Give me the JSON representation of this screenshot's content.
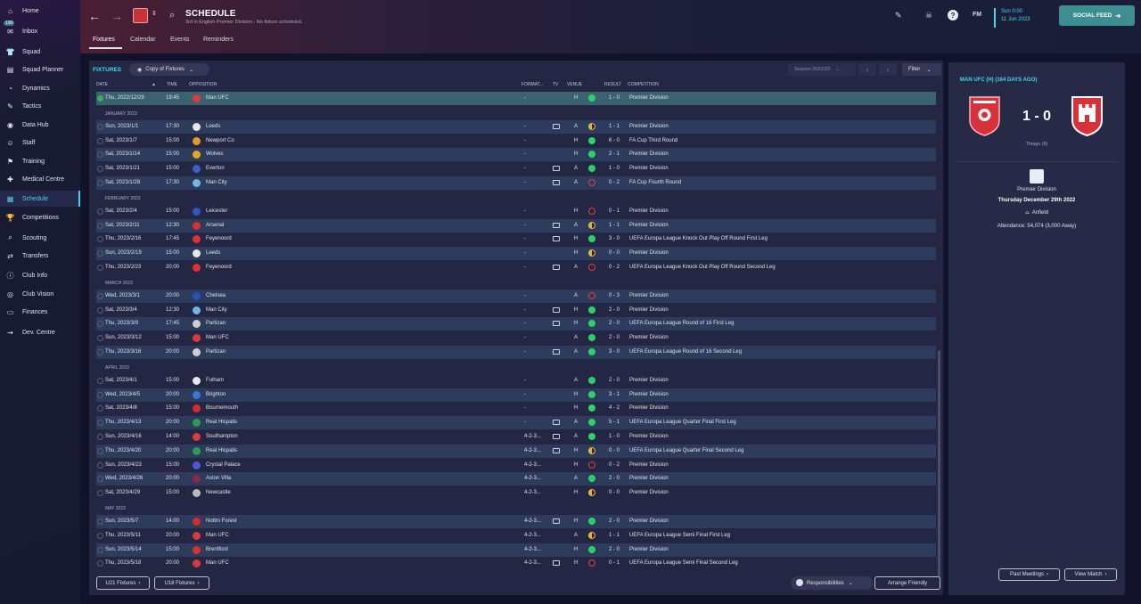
{
  "sidebar": {
    "items": [
      {
        "label": "Home",
        "icon": "home-icon",
        "glyph": "⌂",
        "badge": ""
      },
      {
        "label": "Inbox",
        "icon": "inbox-icon",
        "glyph": "✉",
        "badge": "100"
      },
      {
        "label": "Squad",
        "icon": "squad-icon",
        "glyph": "👕",
        "badge": ""
      },
      {
        "label": "Squad Planner",
        "icon": "squad-planner-icon",
        "glyph": "▤",
        "badge": ""
      },
      {
        "label": "Dynamics",
        "icon": "dynamics-icon",
        "glyph": "◔",
        "badge": ""
      },
      {
        "label": "Tactics",
        "icon": "tactics-icon",
        "glyph": "✎",
        "badge": ""
      },
      {
        "label": "Data Hub",
        "icon": "data-hub-icon",
        "glyph": "◉",
        "badge": ""
      },
      {
        "label": "Staff",
        "icon": "staff-icon",
        "glyph": "☺",
        "badge": ""
      },
      {
        "label": "Training",
        "icon": "training-icon",
        "glyph": "⚑",
        "badge": ""
      },
      {
        "label": "Medical Centre",
        "icon": "medical-icon",
        "glyph": "✚",
        "badge": ""
      },
      {
        "label": "Schedule",
        "icon": "schedule-icon",
        "glyph": "▦",
        "badge": ""
      },
      {
        "label": "Competitions",
        "icon": "competitions-icon",
        "glyph": "🏆",
        "badge": ""
      },
      {
        "label": "Scouting",
        "icon": "scouting-icon",
        "glyph": "⌕",
        "badge": ""
      },
      {
        "label": "Transfers",
        "icon": "transfers-icon",
        "glyph": "⇄",
        "badge": ""
      },
      {
        "label": "Club Info",
        "icon": "club-info-icon",
        "glyph": "ⓘ",
        "badge": ""
      },
      {
        "label": "Club Vision",
        "icon": "club-vision-icon",
        "glyph": "◎",
        "badge": ""
      },
      {
        "label": "Finances",
        "icon": "finances-icon",
        "glyph": "▭",
        "badge": ""
      },
      {
        "label": "Dev. Centre",
        "icon": "dev-centre-icon",
        "glyph": "⇝",
        "badge": ""
      }
    ]
  },
  "header": {
    "title": "SCHEDULE",
    "subtitle": "3rd in English Premier Division - No fixture scheduled.",
    "tabs": [
      "Fixtures",
      "Calendar",
      "Events",
      "Reminders"
    ],
    "fm_label": "FM",
    "date_time": "Sun 0:00",
    "date_date": "11 Jun 2023",
    "social_feed": "SOCIAL FEED"
  },
  "main": {
    "title": "FIXTURES",
    "copy_dropdown": "Copy of Fixtures",
    "season_dropdown": "Season 2022/23",
    "filter": "Filter",
    "columns": {
      "date": "DATE",
      "time": "TIME",
      "opposition": "OPPOSITION",
      "format": "FORMAT...",
      "tv": "TV",
      "venue": "VENUE",
      "result": "RESULT",
      "competition": "COMPETITION"
    },
    "rows": [
      {
        "kind": "row",
        "date": "Thu, 2022/12/29",
        "time": "19:45",
        "opp": "Man UFC",
        "crest": "#d93a3a",
        "format": "-",
        "tv": false,
        "venue": "H",
        "res": "w",
        "score": "1 - 0",
        "comp": "Premier Division",
        "hl": true
      },
      {
        "kind": "month",
        "label": "JANUARY 2023"
      },
      {
        "kind": "row",
        "date": "Sun, 2023/1/1",
        "time": "17:30",
        "opp": "Leeds",
        "crest": "#e8e8e8",
        "format": "-",
        "tv": true,
        "venue": "A",
        "res": "d",
        "score": "1 - 1",
        "comp": "Premier Division"
      },
      {
        "kind": "row",
        "date": "Sat, 2023/1/7",
        "time": "15:00",
        "opp": "Newport Co",
        "crest": "#e09a2a",
        "format": "-",
        "tv": false,
        "venue": "H",
        "res": "w",
        "score": "6 - 0",
        "comp": "FA Cup Third Round"
      },
      {
        "kind": "row",
        "date": "Sat, 2023/1/14",
        "time": "15:00",
        "opp": "Wolves",
        "crest": "#e8a520",
        "format": "-",
        "tv": false,
        "venue": "H",
        "res": "w",
        "score": "2 - 1",
        "comp": "Premier Division"
      },
      {
        "kind": "row",
        "date": "Sat, 2023/1/21",
        "time": "15:00",
        "opp": "Everton",
        "crest": "#3a62c8",
        "format": "-",
        "tv": true,
        "venue": "A",
        "res": "w",
        "score": "1 - 0",
        "comp": "Premier Division"
      },
      {
        "kind": "row",
        "date": "Sat, 2023/1/28",
        "time": "17:30",
        "opp": "Man City",
        "crest": "#6fb5e8",
        "format": "-",
        "tv": true,
        "venue": "A",
        "res": "l",
        "score": "0 - 2",
        "comp": "FA Cup Fourth Round"
      },
      {
        "kind": "month",
        "label": "FEBRUARY 2023"
      },
      {
        "kind": "row",
        "date": "Sat, 2023/2/4",
        "time": "15:00",
        "opp": "Leicester",
        "crest": "#2d5ac2",
        "format": "-",
        "tv": false,
        "venue": "H",
        "res": "l",
        "score": "0 - 1",
        "comp": "Premier Division"
      },
      {
        "kind": "row",
        "date": "Sat, 2023/2/11",
        "time": "12:30",
        "opp": "Arsenal",
        "crest": "#d8312e",
        "format": "-",
        "tv": true,
        "venue": "A",
        "res": "d",
        "score": "1 - 1",
        "comp": "Premier Division"
      },
      {
        "kind": "row",
        "date": "Thu, 2023/2/16",
        "time": "17:45",
        "opp": "Feyenoord",
        "crest": "#e03030",
        "format": "-",
        "tv": true,
        "venue": "H",
        "res": "w",
        "score": "3 - 0",
        "comp": "UEFA Europa League Knock Out Play Off Round First Leg"
      },
      {
        "kind": "row",
        "date": "Sun, 2023/2/19",
        "time": "15:00",
        "opp": "Leeds",
        "crest": "#e8e8e8",
        "format": "-",
        "tv": false,
        "venue": "H",
        "res": "d",
        "score": "0 - 0",
        "comp": "Premier Division"
      },
      {
        "kind": "row",
        "date": "Thu, 2023/2/23",
        "time": "20:00",
        "opp": "Feyenoord",
        "crest": "#e03030",
        "format": "-",
        "tv": true,
        "venue": "A",
        "res": "l",
        "score": "0 - 2",
        "comp": "UEFA Europa League Knock Out Play Off Round Second Leg"
      },
      {
        "kind": "month",
        "label": "MARCH 2023"
      },
      {
        "kind": "row",
        "date": "Wed, 2023/3/1",
        "time": "20:00",
        "opp": "Chelsea",
        "crest": "#2a4fb8",
        "format": "-",
        "tv": false,
        "venue": "A",
        "res": "l",
        "score": "0 - 3",
        "comp": "Premier Division"
      },
      {
        "kind": "row",
        "date": "Sat, 2023/3/4",
        "time": "12:30",
        "opp": "Man City",
        "crest": "#6fb5e8",
        "format": "-",
        "tv": true,
        "venue": "H",
        "res": "w",
        "score": "2 - 0",
        "comp": "Premier Division"
      },
      {
        "kind": "row",
        "date": "Thu, 2023/3/9",
        "time": "17:45",
        "opp": "Partizan",
        "crest": "#d0d0d0",
        "format": "-",
        "tv": true,
        "venue": "H",
        "res": "w",
        "score": "2 - 0",
        "comp": "UEFA Europa League Round of 16  First Leg"
      },
      {
        "kind": "row",
        "date": "Sun, 2023/3/12",
        "time": "15:00",
        "opp": "Man UFC",
        "crest": "#d93a3a",
        "format": "-",
        "tv": false,
        "venue": "A",
        "res": "w",
        "score": "2 - 0",
        "comp": "Premier Division"
      },
      {
        "kind": "row",
        "date": "Thu, 2023/3/16",
        "time": "20:00",
        "opp": "Partizan",
        "crest": "#d0d0d0",
        "format": "-",
        "tv": true,
        "venue": "A",
        "res": "w",
        "score": "3 - 0",
        "comp": "UEFA Europa League Round of 16  Second Leg"
      },
      {
        "kind": "month",
        "label": "APRIL 2023"
      },
      {
        "kind": "row",
        "date": "Sat, 2023/4/1",
        "time": "15:00",
        "opp": "Fulham",
        "crest": "#e8e8e8",
        "format": "-",
        "tv": false,
        "venue": "A",
        "res": "w",
        "score": "2 - 0",
        "comp": "Premier Division"
      },
      {
        "kind": "row",
        "date": "Wed, 2023/4/5",
        "time": "20:00",
        "opp": "Brighton",
        "crest": "#3a78d8",
        "format": "-",
        "tv": false,
        "venue": "H",
        "res": "w",
        "score": "3 - 1",
        "comp": "Premier Division"
      },
      {
        "kind": "row",
        "date": "Sat, 2023/4/8",
        "time": "15:00",
        "opp": "Bournemouth",
        "crest": "#d82a2a",
        "format": "-",
        "tv": false,
        "venue": "H",
        "res": "w",
        "score": "4 - 2",
        "comp": "Premier Division"
      },
      {
        "kind": "row",
        "date": "Thu, 2023/4/13",
        "time": "20:00",
        "opp": "Real Hispalis",
        "crest": "#2e9a55",
        "format": "-",
        "tv": true,
        "venue": "A",
        "res": "w",
        "score": "5 - 1",
        "comp": "UEFA Europa League Quarter Final First Leg"
      },
      {
        "kind": "row",
        "date": "Sun, 2023/4/16",
        "time": "14:00",
        "opp": "Southampton",
        "crest": "#e03a3a",
        "format": "4-2-3...",
        "tv": true,
        "venue": "A",
        "res": "w",
        "score": "1 - 0",
        "comp": "Premier Division"
      },
      {
        "kind": "row",
        "date": "Thu, 2023/4/20",
        "time": "20:00",
        "opp": "Real Hispalis",
        "crest": "#2e9a55",
        "format": "4-2-3...",
        "tv": true,
        "venue": "H",
        "res": "d",
        "score": "0 - 0",
        "comp": "UEFA Europa League Quarter Final Second Leg"
      },
      {
        "kind": "row",
        "date": "Sun, 2023/4/23",
        "time": "15:00",
        "opp": "Crystal Palace",
        "crest": "#4a5ad8",
        "format": "4-2-3...",
        "tv": false,
        "venue": "H",
        "res": "l",
        "score": "0 - 2",
        "comp": "Premier Division"
      },
      {
        "kind": "row",
        "date": "Wed, 2023/4/26",
        "time": "20:00",
        "opp": "Aston Villa",
        "crest": "#8a2a4a",
        "format": "4-2-3...",
        "tv": false,
        "venue": "A",
        "res": "w",
        "score": "2 - 0",
        "comp": "Premier Division"
      },
      {
        "kind": "row",
        "date": "Sat, 2023/4/29",
        "time": "15:00",
        "opp": "Newcastle",
        "crest": "#bbbbbb",
        "format": "4-2-3...",
        "tv": false,
        "venue": "H",
        "res": "d",
        "score": "0 - 0",
        "comp": "Premier Division"
      },
      {
        "kind": "month",
        "label": "MAY 2023"
      },
      {
        "kind": "row",
        "date": "Sun, 2023/5/7",
        "time": "14:00",
        "opp": "Nottm Forest",
        "crest": "#d82a2a",
        "format": "4-2-3...",
        "tv": true,
        "venue": "H",
        "res": "w",
        "score": "2 - 0",
        "comp": "Premier Division"
      },
      {
        "kind": "row",
        "date": "Thu, 2023/5/11",
        "time": "20:00",
        "opp": "Man UFC",
        "crest": "#d93a3a",
        "format": "4-2-3...",
        "tv": false,
        "venue": "A",
        "res": "d",
        "score": "1 - 1",
        "comp": "UEFA Europa League Semi Final First Leg"
      },
      {
        "kind": "row",
        "date": "Sun, 2023/5/14",
        "time": "15:00",
        "opp": "Brentford",
        "crest": "#d8312e",
        "format": "4-2-3...",
        "tv": false,
        "venue": "H",
        "res": "w",
        "score": "2 - 0",
        "comp": "Premier Division"
      },
      {
        "kind": "row",
        "date": "Thu, 2023/5/18",
        "time": "20:00",
        "opp": "Man UFC",
        "crest": "#d93a3a",
        "format": "4-2-3...",
        "tv": true,
        "venue": "H",
        "res": "l",
        "score": "0 - 1",
        "comp": "UEFA Europa League Semi Final Second Leg"
      }
    ],
    "u21_button": "U21 Fixtures",
    "u18_button": "U18 Fixtures",
    "responsibilities": "Responsibilities",
    "arrange_friendly": "Arrange Friendly"
  },
  "side_panel": {
    "title": "MAN UFC (H) (164 DAYS AGO)",
    "score": "1 - 0",
    "scorer": "Thiago (8)",
    "competition": "Premier Division",
    "date": "Thursday December 29th 2022",
    "venue": "Anfield",
    "attendance": "Attendance: 54,074 (3,000 Away)",
    "past_meetings": "Past Meetings",
    "view_match": "View Match"
  },
  "colors": {
    "accent": "#46d6e8",
    "win": "#2fcf6e",
    "loss": "#e0403f",
    "draw": "#e8b53c"
  }
}
